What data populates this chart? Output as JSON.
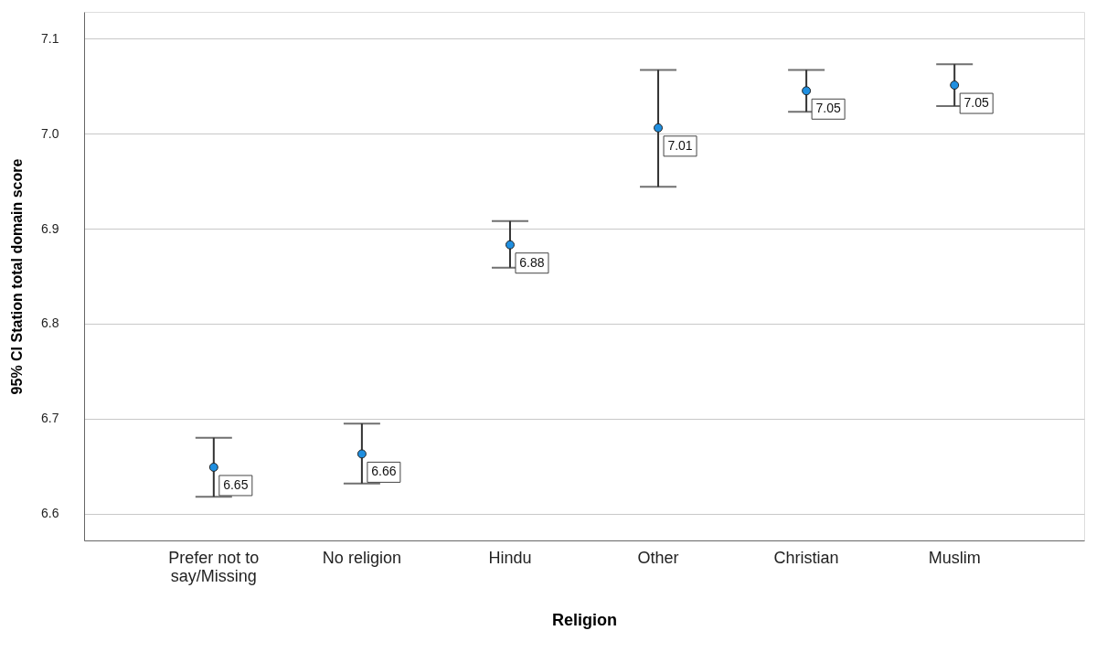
{
  "chart_data": {
    "type": "scatter",
    "xlabel": "Religion",
    "ylabel": "95% CI Station total domain score",
    "categories": [
      "Prefer not to say/Missing",
      "No religion",
      "Hindu",
      "Other",
      "Christian",
      "Muslim"
    ],
    "values": [
      6.649,
      6.663,
      6.883,
      7.006,
      7.045,
      7.051
    ],
    "errors": [
      [
        6.618,
        6.68
      ],
      [
        6.632,
        6.695
      ],
      [
        6.859,
        6.908
      ],
      [
        6.944,
        7.067
      ],
      [
        7.023,
        7.067
      ],
      [
        7.029,
        7.073
      ]
    ],
    "value_labels": [
      "6.65",
      "6.66",
      "6.88",
      "7.01",
      "7.05",
      "7.05"
    ],
    "color": "#1f8fe0",
    "marker": "circle",
    "ylim": [
      6.572,
      7.128
    ],
    "yticks": [
      6.6,
      6.7,
      6.8,
      6.9,
      {
        "value": 7,
        "label": "7.0"
      },
      7.1
    ],
    "grid": "y"
  }
}
